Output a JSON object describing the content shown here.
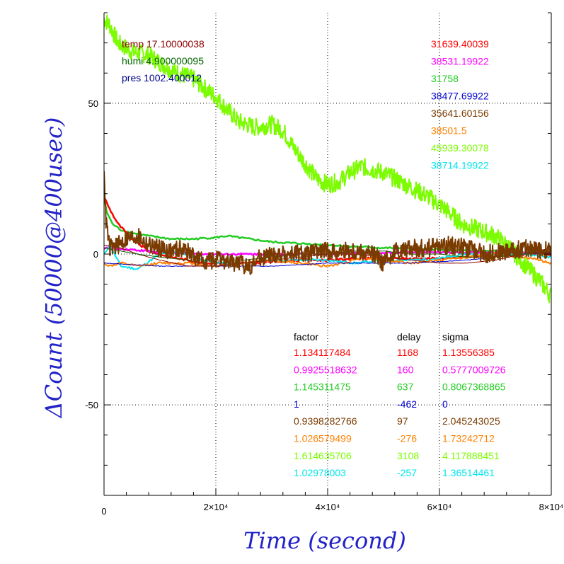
{
  "chart_data": {
    "type": "line",
    "xlabel": "Time (second)",
    "ylabel": "ΔCount (50000@400usec)",
    "xlim": [
      0,
      80000
    ],
    "ylim": [
      -80,
      80
    ],
    "grid": true,
    "x_ticks": [
      {
        "value": 0,
        "label": "0"
      },
      {
        "value": 20000,
        "label": "2×10⁴"
      },
      {
        "value": 40000,
        "label": "4×10⁴"
      },
      {
        "value": 60000,
        "label": "6×10⁴"
      },
      {
        "value": 80000,
        "label": "8×10⁴"
      }
    ],
    "y_ticks": [
      {
        "value": 50,
        "label": "50"
      },
      {
        "value": 0,
        "label": "0"
      },
      {
        "value": -50,
        "label": "-50"
      }
    ],
    "env_labels": [
      {
        "text": "temp 17.10000038",
        "color": "#8b0000"
      },
      {
        "text": "humi 4.900000095",
        "color": "#006400"
      },
      {
        "text": "pres 1002.400012",
        "color": "#00008b"
      }
    ],
    "right_values": [
      {
        "text": "31639.40039",
        "color": "#ff0000"
      },
      {
        "text": "38531.19922",
        "color": "#ff00ff"
      },
      {
        "text": "31758",
        "color": "#22cc22"
      },
      {
        "text": "38477.69922",
        "color": "#0000cd"
      },
      {
        "text": "35641.60156",
        "color": "#7a3b00"
      },
      {
        "text": "38501.5",
        "color": "#ff8000"
      },
      {
        "text": "45939.30078",
        "color": "#7cfc00"
      },
      {
        "text": "38714.19922",
        "color": "#00e5ee"
      }
    ],
    "table_headers": [
      "factor",
      "delay",
      "sigma"
    ],
    "table_rows": [
      {
        "factor": "1.134117484",
        "delay": "1168",
        "sigma": "1.13556385",
        "color": "#ff0000"
      },
      {
        "factor": "0.9925518632",
        "delay": "160",
        "sigma": "0.5777009726",
        "color": "#ff00ff"
      },
      {
        "factor": "1.145311475",
        "delay": "637",
        "sigma": "0.8067368865",
        "color": "#22cc22"
      },
      {
        "factor": "1",
        "delay": "-462",
        "sigma": "0",
        "color": "#0000cd"
      },
      {
        "factor": "0.9398282766",
        "delay": "97",
        "sigma": "2.045243025",
        "color": "#7a3b00"
      },
      {
        "factor": "1.026579499",
        "delay": "-276",
        "sigma": "1.73242712",
        "color": "#ff8000"
      },
      {
        "factor": "1.614635706",
        "delay": "3108",
        "sigma": "4.117888451",
        "color": "#7cfc00"
      },
      {
        "factor": "1.02978003",
        "delay": "-257",
        "sigma": "1.36514461",
        "color": "#00e5ee"
      }
    ],
    "series": [
      {
        "color": "#7cfc00",
        "noise": 3.0,
        "width": 2,
        "x": [
          0,
          1000,
          2500,
          5000,
          8000,
          12000,
          16000,
          20000,
          24000,
          27000,
          30000,
          32000,
          34000,
          36000,
          38000,
          40000,
          42000,
          44000,
          46000,
          48000,
          50000,
          52000,
          55000,
          58000,
          61000,
          64000,
          67000,
          70000,
          72000,
          74000,
          76000,
          78000,
          80000
        ],
        "y": [
          78,
          76,
          70,
          67,
          66,
          61,
          58,
          52,
          44,
          42,
          43,
          41,
          35,
          30,
          25,
          23,
          24,
          27,
          29,
          28,
          27,
          25,
          22,
          19,
          15,
          10,
          8,
          6,
          3,
          -1,
          -5,
          -9,
          -14
        ]
      },
      {
        "color": "#22cc22",
        "noise": 0.3,
        "width": 2.5,
        "x": [
          0,
          500,
          1500,
          3000,
          5000,
          8000,
          12000,
          16000,
          20000,
          22000,
          26000,
          30000,
          35000,
          40000,
          45000,
          50000,
          55000,
          60000,
          65000,
          70000,
          75000,
          80000
        ],
        "y": [
          18,
          14,
          10,
          8,
          7,
          6,
          5,
          5,
          5.5,
          6,
          5,
          4,
          3.5,
          3,
          2.5,
          2,
          2,
          1.5,
          1,
          1,
          0.5,
          0
        ]
      },
      {
        "color": "#ff0000",
        "noise": 0.4,
        "width": 2.5,
        "x": [
          0,
          1000,
          2500,
          5000,
          8000,
          12000,
          15000,
          18000,
          22000,
          26000,
          30000,
          35000,
          40000,
          45000,
          50000,
          55000,
          60000,
          65000,
          70000,
          75000,
          80000
        ],
        "y": [
          19,
          15,
          10,
          5,
          1,
          -1,
          -2,
          -3,
          -3,
          -3,
          -2.5,
          -2,
          -2,
          -1.5,
          -1.5,
          -1.5,
          -1.5,
          -1,
          -0.5,
          0,
          0
        ]
      },
      {
        "color": "#ff00ff",
        "noise": 0.3,
        "width": 2.5,
        "x": [
          0,
          5000,
          10000,
          20000,
          30000,
          40000,
          50000,
          60000,
          70000,
          80000
        ],
        "y": [
          2,
          1.5,
          0.5,
          0,
          0,
          0,
          0.5,
          0.5,
          0.5,
          0.5
        ]
      },
      {
        "color": "#00e5ee",
        "noise": 0.4,
        "width": 2,
        "x": [
          0,
          1000,
          3000,
          6000,
          10000,
          13000,
          16000,
          20000,
          25000,
          30000,
          35000,
          40000,
          45000,
          50000,
          55000,
          60000,
          65000,
          70000,
          75000,
          80000
        ],
        "y": [
          0,
          3,
          -4,
          -5,
          0,
          1,
          -1,
          -3,
          -3,
          -2,
          -2,
          -2,
          -3,
          -2,
          -2,
          -1.5,
          0,
          0,
          0,
          -1
        ]
      },
      {
        "color": "#ff8000",
        "noise": 0.4,
        "width": 2,
        "x": [
          0,
          1000,
          3000,
          6000,
          10000,
          15000,
          20000,
          25000,
          30000,
          35000,
          40000,
          43000,
          46000,
          50000,
          55000,
          60000,
          65000,
          70000,
          75000,
          78000,
          80000
        ],
        "y": [
          -3,
          -4,
          -3,
          -4,
          -3,
          -3,
          -4,
          -3,
          -2,
          -3,
          -4,
          -3,
          -1,
          -2,
          -3,
          -2,
          -1,
          0,
          -1,
          -2,
          -3
        ]
      },
      {
        "color": "#0000cd",
        "noise": 0.1,
        "width": 1,
        "x": [
          0,
          5000,
          10000,
          20000,
          30000,
          35000,
          40000,
          45000,
          50000,
          55000,
          60000,
          65000,
          70000,
          75000,
          80000
        ],
        "y": [
          -3,
          -3.5,
          -4,
          -4,
          -4,
          -3.5,
          -3,
          -3,
          -3,
          -3,
          -2.5,
          -2,
          -1,
          0,
          0.5
        ]
      },
      {
        "color": "#8b0000",
        "noise": 0.05,
        "width": 1,
        "x": [
          0,
          3000,
          6000,
          10000,
          15000,
          20000,
          25000,
          30000,
          35000,
          40000,
          45000,
          50000,
          55000,
          60000,
          65000,
          70000,
          75000,
          80000
        ],
        "y": [
          3,
          2,
          0,
          -2,
          -4,
          -4,
          -3,
          -2,
          -1,
          0,
          0,
          -1,
          -2,
          -3,
          -3,
          -2,
          0,
          2
        ]
      },
      {
        "color": "#006400",
        "noise": 0.05,
        "width": 1,
        "x": [
          0,
          3000,
          6000,
          10000,
          15000,
          20000,
          25000,
          30000,
          35000,
          40000,
          45000,
          50000,
          55000,
          60000,
          65000,
          70000,
          75000,
          80000
        ],
        "y": [
          2,
          1,
          0,
          -1,
          -2,
          -2,
          -2,
          -1,
          0,
          0,
          1,
          1,
          0,
          0,
          -1,
          -1,
          0,
          1
        ]
      },
      {
        "color": "#7a3b00",
        "noise": 3.0,
        "width": 2,
        "x": [
          0,
          300,
          1000,
          2500,
          4000,
          6000,
          8000,
          10000,
          12000,
          14000,
          17000,
          20000,
          24000,
          26000,
          28000,
          32000,
          36000,
          40000,
          44000,
          48000,
          50000,
          52000,
          55000,
          58000,
          62000,
          65000,
          68000,
          72000,
          76000,
          80000
        ],
        "y": [
          30,
          12,
          2,
          3,
          5,
          6,
          3,
          2,
          1,
          2,
          -2,
          -2,
          -3,
          -4,
          -1,
          0,
          0,
          1,
          1,
          0,
          -3,
          1,
          2,
          2,
          3,
          2,
          0,
          1,
          2,
          1
        ]
      }
    ]
  }
}
